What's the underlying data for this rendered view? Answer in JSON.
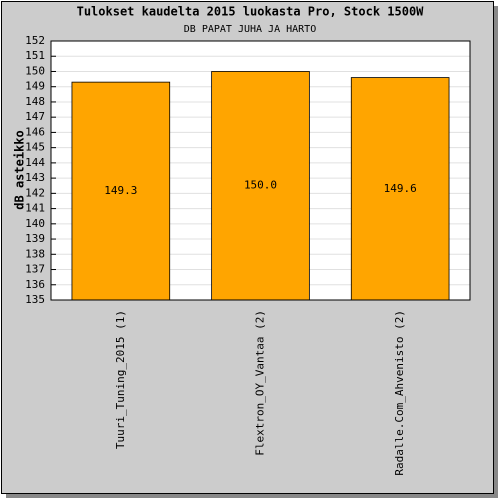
{
  "chart_data": {
    "type": "bar",
    "title": "Tulokset kaudelta 2015 luokasta Pro, Stock 1500W",
    "subtitle": "DB PAPAT JUHA JA HARTO",
    "y_label": "dB asteikko",
    "categories": [
      "Tuuri_Tuning_2015 (1)",
      "Flextron_OY_Vantaa (2)",
      "Radalle.Com_Ahvenisto (2)"
    ],
    "values": [
      149.3,
      150,
      149.6
    ],
    "value_labels": [
      "149.3",
      "150.0",
      "149.6"
    ],
    "color": "#ffa500",
    "ylim": [
      135,
      152
    ],
    "yticks": [
      135,
      136,
      137,
      138,
      139,
      140,
      141,
      142,
      143,
      144,
      145,
      146,
      147,
      148,
      149,
      150,
      151,
      152
    ],
    "grid": true
  }
}
